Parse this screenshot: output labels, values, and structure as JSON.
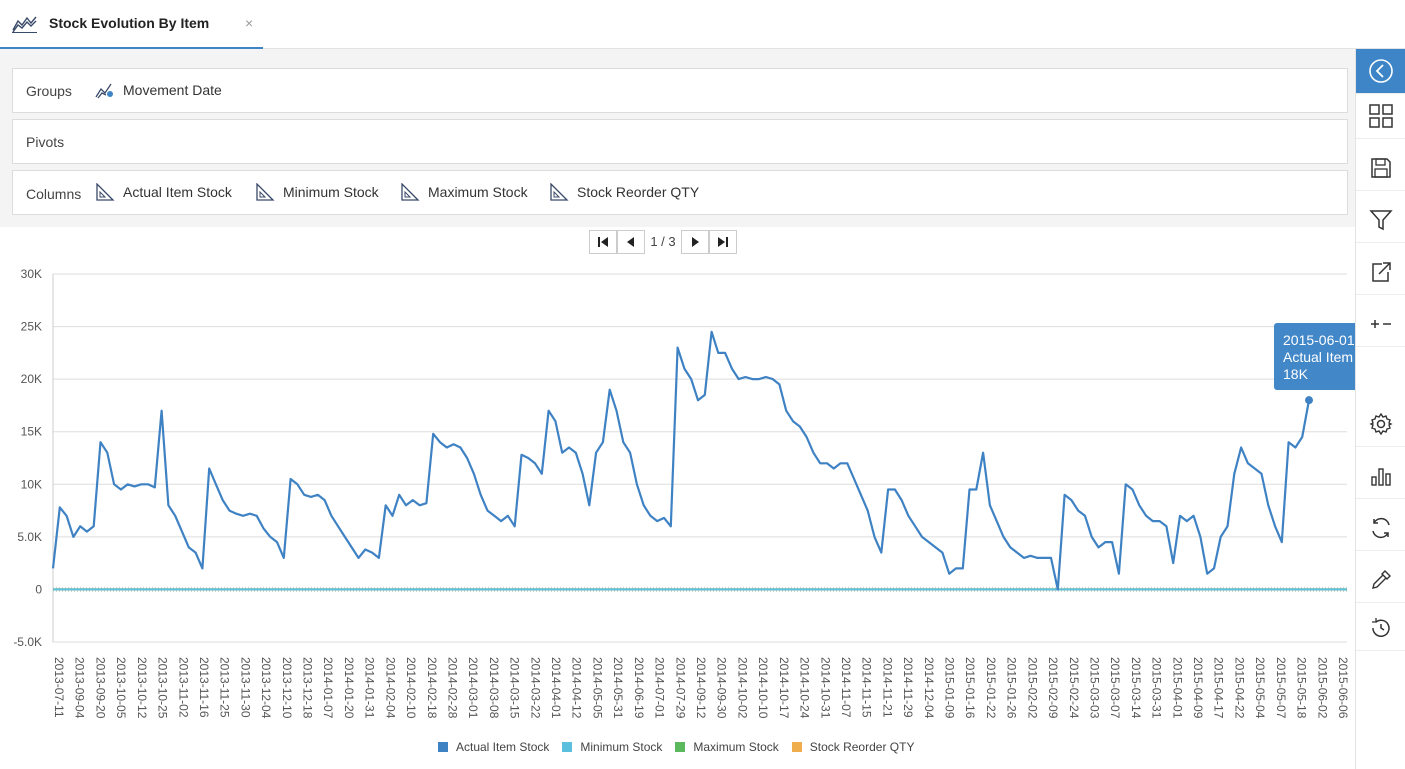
{
  "tab": {
    "title": "Stock Evolution By Item",
    "close": "×",
    "icon": "line-chart-icon"
  },
  "config": {
    "groups": {
      "label": "Groups",
      "items": [
        "Movement Date"
      ]
    },
    "pivots": {
      "label": "Pivots"
    },
    "columns": {
      "label": "Columns",
      "items": [
        "Actual Item Stock",
        "Minimum Stock",
        "Maximum Stock",
        "Stock Reorder QTY"
      ]
    }
  },
  "pager": {
    "text": "1 / 3"
  },
  "tooltip": {
    "date": "2015-06-01",
    "series": "Actual Item Stock",
    "value": "18K"
  },
  "toolbar": [
    "collapse-icon",
    "grid-icon",
    "save-icon",
    "filter-icon",
    "export-icon",
    "zoom-icon",
    "settings-icon",
    "chart-type-icon",
    "refresh-icon",
    "color-picker-icon",
    "history-icon"
  ],
  "colors": {
    "accent": "#3d85c6",
    "actual": "#3f82c4",
    "minimum": "#5bc0de",
    "maximum": "#5cb85c",
    "reorder": "#f0ad4e"
  },
  "chart_data": {
    "type": "line",
    "ylim": [
      -5000,
      30000
    ],
    "yticks": [
      -5000,
      0,
      5000,
      10000,
      15000,
      20000,
      25000,
      30000
    ],
    "ytick_labels": [
      "-5.0K",
      "0",
      "5.0K",
      "10K",
      "15K",
      "20K",
      "25K",
      "30K"
    ],
    "x": [
      "2013-07-11",
      "2013-09-04",
      "2013-09-20",
      "2013-10-05",
      "2013-10-12",
      "2013-10-25",
      "2013-11-02",
      "2013-11-16",
      "2013-11-25",
      "2013-11-30",
      "2013-12-04",
      "2013-12-10",
      "2013-12-18",
      "2014-01-07",
      "2014-01-20",
      "2014-01-31",
      "2014-02-04",
      "2014-02-10",
      "2014-02-18",
      "2014-02-28",
      "2014-03-01",
      "2014-03-08",
      "2014-03-15",
      "2014-03-22",
      "2014-04-01",
      "2014-04-12",
      "2014-05-05",
      "2014-05-31",
      "2014-06-19",
      "2014-07-01",
      "2014-07-29",
      "2014-09-12",
      "2014-09-30",
      "2014-10-02",
      "2014-10-10",
      "2014-10-17",
      "2014-10-24",
      "2014-10-31",
      "2014-11-07",
      "2014-11-15",
      "2014-11-21",
      "2014-11-29",
      "2014-12-04",
      "2015-01-09",
      "2015-01-16",
      "2015-01-22",
      "2015-01-26",
      "2015-02-02",
      "2015-02-09",
      "2015-02-24",
      "2015-03-03",
      "2015-03-07",
      "2015-03-14",
      "2015-03-31",
      "2015-04-01",
      "2015-04-09",
      "2015-04-17",
      "2015-04-22",
      "2015-05-04",
      "2015-05-07",
      "2015-05-18",
      "2015-06-02",
      "2015-06-06"
    ],
    "series": [
      {
        "name": "Actual Item Stock",
        "color": "#3f82c4",
        "values": [
          [
            0,
            2000
          ],
          [
            1,
            7800
          ],
          [
            2,
            7000
          ],
          [
            3,
            5000
          ],
          [
            4,
            6000
          ],
          [
            5,
            5500
          ],
          [
            6,
            6000
          ],
          [
            7,
            14000
          ],
          [
            8,
            13000
          ],
          [
            9,
            10000
          ],
          [
            10,
            9500
          ],
          [
            11,
            10000
          ],
          [
            12,
            9800
          ],
          [
            13,
            10000
          ],
          [
            14,
            10000
          ],
          [
            15,
            9700
          ],
          [
            16,
            17000
          ],
          [
            17,
            8000
          ],
          [
            18,
            7000
          ],
          [
            19,
            5500
          ],
          [
            20,
            4000
          ],
          [
            21,
            3500
          ],
          [
            22,
            2000
          ],
          [
            23,
            11500
          ],
          [
            24,
            10000
          ],
          [
            25,
            8500
          ],
          [
            26,
            7500
          ],
          [
            27,
            7200
          ],
          [
            28,
            7000
          ],
          [
            29,
            7200
          ],
          [
            30,
            7000
          ],
          [
            31,
            5800
          ],
          [
            32,
            5000
          ],
          [
            33,
            4500
          ],
          [
            34,
            3000
          ],
          [
            35,
            10500
          ],
          [
            36,
            10000
          ],
          [
            37,
            9000
          ],
          [
            38,
            8800
          ],
          [
            39,
            9000
          ],
          [
            40,
            8500
          ],
          [
            41,
            7000
          ],
          [
            42,
            6000
          ],
          [
            43,
            5000
          ],
          [
            44,
            4000
          ],
          [
            45,
            3000
          ],
          [
            46,
            3800
          ],
          [
            47,
            3500
          ],
          [
            48,
            3000
          ],
          [
            49,
            8000
          ],
          [
            50,
            7000
          ],
          [
            51,
            9000
          ],
          [
            52,
            8000
          ],
          [
            53,
            8500
          ],
          [
            54,
            8000
          ],
          [
            55,
            8200
          ],
          [
            56,
            14800
          ],
          [
            57,
            14000
          ],
          [
            58,
            13500
          ],
          [
            59,
            13800
          ],
          [
            60,
            13500
          ],
          [
            61,
            12500
          ],
          [
            62,
            11000
          ],
          [
            63,
            9000
          ],
          [
            64,
            7500
          ],
          [
            65,
            7000
          ],
          [
            66,
            6500
          ],
          [
            67,
            7000
          ],
          [
            68,
            6000
          ],
          [
            69,
            12800
          ],
          [
            70,
            12500
          ],
          [
            71,
            12000
          ],
          [
            72,
            11000
          ],
          [
            73,
            17000
          ],
          [
            74,
            16000
          ],
          [
            75,
            13000
          ],
          [
            76,
            13500
          ],
          [
            77,
            13000
          ],
          [
            78,
            11000
          ],
          [
            79,
            8000
          ],
          [
            80,
            13000
          ],
          [
            81,
            14000
          ],
          [
            82,
            19000
          ],
          [
            83,
            17000
          ],
          [
            84,
            14000
          ],
          [
            85,
            13000
          ],
          [
            86,
            10000
          ],
          [
            87,
            8000
          ],
          [
            88,
            7000
          ],
          [
            89,
            6500
          ],
          [
            90,
            6800
          ],
          [
            91,
            6000
          ],
          [
            92,
            23000
          ],
          [
            93,
            21000
          ],
          [
            94,
            20000
          ],
          [
            95,
            18000
          ],
          [
            96,
            18500
          ],
          [
            97,
            24500
          ],
          [
            98,
            22500
          ],
          [
            99,
            22500
          ],
          [
            100,
            21000
          ],
          [
            101,
            20000
          ],
          [
            102,
            20200
          ],
          [
            103,
            20000
          ],
          [
            104,
            20000
          ],
          [
            105,
            20200
          ],
          [
            106,
            20000
          ],
          [
            107,
            19500
          ],
          [
            108,
            17000
          ],
          [
            109,
            16000
          ],
          [
            110,
            15500
          ],
          [
            111,
            14500
          ],
          [
            112,
            13000
          ],
          [
            113,
            12000
          ],
          [
            114,
            12000
          ],
          [
            115,
            11500
          ],
          [
            116,
            12000
          ],
          [
            117,
            12000
          ],
          [
            118,
            10500
          ],
          [
            119,
            9000
          ],
          [
            120,
            7500
          ],
          [
            121,
            5000
          ],
          [
            122,
            3500
          ],
          [
            123,
            9500
          ],
          [
            124,
            9500
          ],
          [
            125,
            8500
          ],
          [
            126,
            7000
          ],
          [
            127,
            6000
          ],
          [
            128,
            5000
          ],
          [
            129,
            4500
          ],
          [
            130,
            4000
          ],
          [
            131,
            3500
          ],
          [
            132,
            1500
          ],
          [
            133,
            2000
          ],
          [
            134,
            2000
          ],
          [
            135,
            9500
          ],
          [
            136,
            9500
          ],
          [
            137,
            13000
          ],
          [
            138,
            8000
          ],
          [
            139,
            6500
          ],
          [
            140,
            5000
          ],
          [
            141,
            4000
          ],
          [
            142,
            3500
          ],
          [
            143,
            3000
          ],
          [
            144,
            3200
          ],
          [
            145,
            3000
          ],
          [
            146,
            3000
          ],
          [
            147,
            3000
          ],
          [
            148,
            0
          ],
          [
            149,
            9000
          ],
          [
            150,
            8500
          ],
          [
            151,
            7500
          ],
          [
            152,
            7000
          ],
          [
            153,
            5000
          ],
          [
            154,
            4000
          ],
          [
            155,
            4500
          ],
          [
            156,
            4500
          ],
          [
            157,
            1500
          ],
          [
            158,
            10000
          ],
          [
            159,
            9500
          ],
          [
            160,
            8000
          ],
          [
            161,
            7000
          ],
          [
            162,
            6500
          ],
          [
            163,
            6500
          ],
          [
            164,
            6000
          ],
          [
            165,
            2500
          ],
          [
            166,
            7000
          ],
          [
            167,
            6500
          ],
          [
            168,
            7000
          ],
          [
            169,
            5000
          ],
          [
            170,
            1500
          ],
          [
            171,
            2000
          ],
          [
            172,
            5000
          ],
          [
            173,
            6000
          ],
          [
            174,
            11000
          ],
          [
            175,
            13500
          ],
          [
            176,
            12000
          ],
          [
            177,
            11500
          ],
          [
            178,
            11000
          ],
          [
            179,
            8000
          ],
          [
            180,
            6000
          ],
          [
            181,
            4500
          ],
          [
            182,
            14000
          ],
          [
            183,
            13500
          ],
          [
            184,
            14500
          ],
          [
            185,
            18000
          ]
        ]
      },
      {
        "name": "Minimum Stock",
        "color": "#5bc0de",
        "values": [
          [
            0,
            0
          ],
          [
            185,
            0
          ]
        ]
      },
      {
        "name": "Maximum Stock",
        "color": "#5cb85c",
        "values": [
          [
            0,
            0
          ],
          [
            185,
            0
          ]
        ]
      },
      {
        "name": "Stock Reorder QTY",
        "color": "#f0ad4e",
        "values": [
          [
            0,
            0
          ],
          [
            185,
            0
          ]
        ]
      }
    ],
    "legend_position": "bottom",
    "grid": true
  }
}
